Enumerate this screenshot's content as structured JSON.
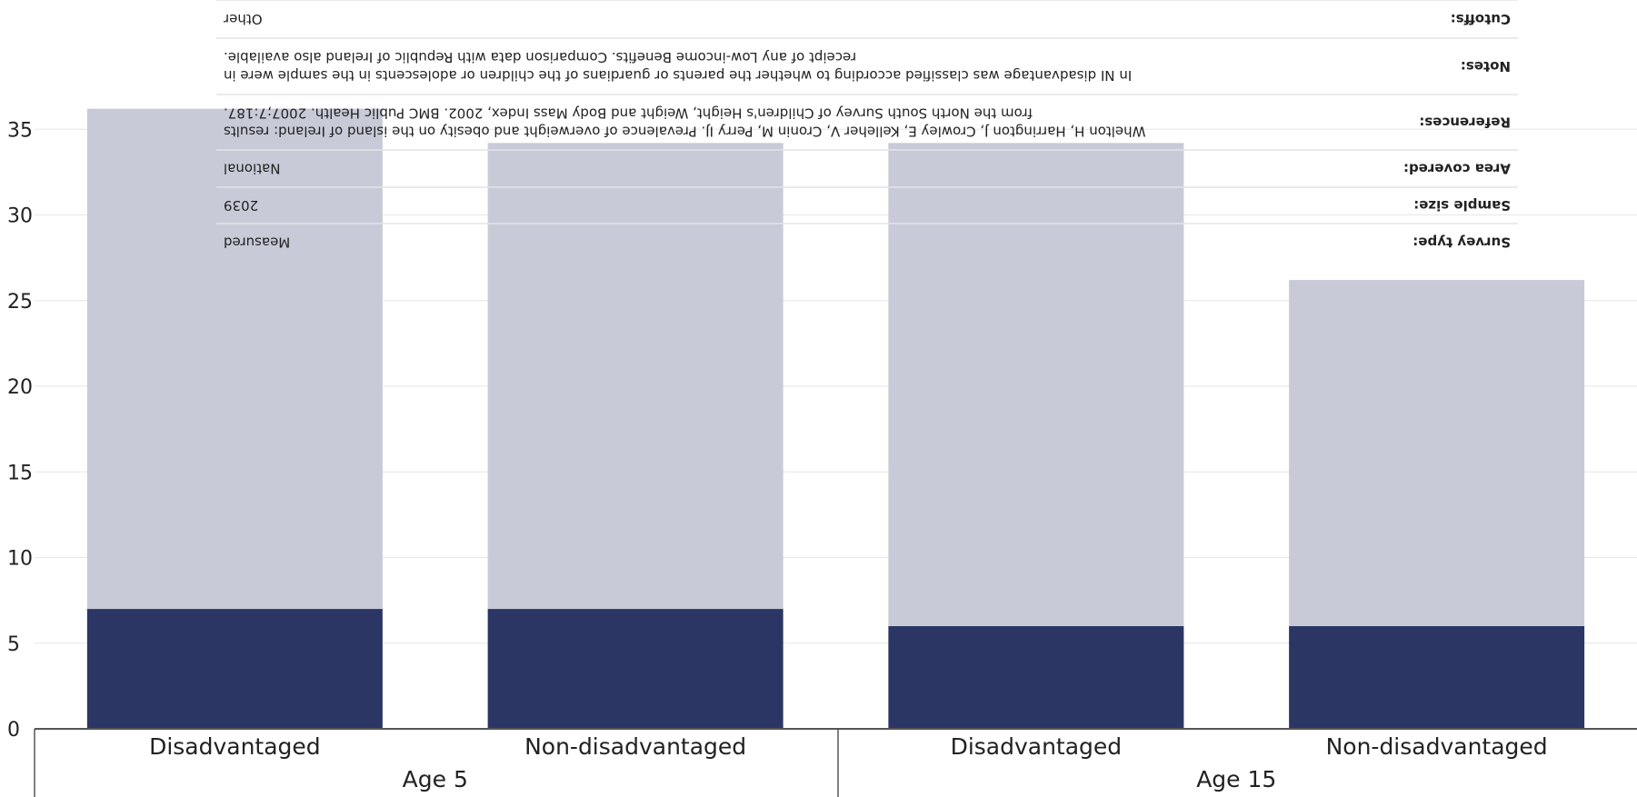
{
  "chart_data": {
    "type": "bar",
    "stacked": true,
    "y_ticks": [
      "0",
      "5",
      "10",
      "15",
      "20",
      "25",
      "30",
      "35"
    ],
    "ylim": [
      0,
      37.5
    ],
    "grid": true,
    "categories": [
      "Disadvantaged",
      "Non-disadvantaged",
      "Disadvantaged",
      "Non-disadvantaged"
    ],
    "groups": [
      {
        "label": "Age 5",
        "categories": [
          0,
          1
        ]
      },
      {
        "label": "Age 15",
        "categories": [
          2,
          3
        ]
      }
    ],
    "series": [
      {
        "values": [
          7.0,
          7.0,
          6.0,
          6.0
        ],
        "color": "#2b3664"
      },
      {
        "values": [
          29.2,
          27.2,
          28.2,
          20.2
        ],
        "color": "#c8cad7"
      }
    ],
    "info_table": {
      "rows": [
        {
          "key": "Cutoffs:",
          "lines": [
            "Other"
          ]
        },
        {
          "key": "Notes:",
          "lines": [
            "In NI disadvantage was classified according to whether the parents or guardians of the children or adolescents in the sample were in",
            "receipt of any Low-income Benefits. Comparison data with Republic of Ireland also available."
          ]
        },
        {
          "key": "References:",
          "lines": [
            "Whelton H, Harrington J, Crowley E, Kelleher V, Cronin M, Perry IJ. Prevalence of overweight and obesity on the island of Ireland: results",
            "from the North South Survey of Children's Height, Weight and Body Mass Index, 2002. BMC Public Health. 2007;7:187."
          ]
        },
        {
          "key": "Area covered:",
          "lines": [
            "National"
          ]
        },
        {
          "key": "Sample size:",
          "lines": [
            "2039"
          ]
        },
        {
          "key": "Survey type:",
          "lines": [
            "Measured"
          ]
        }
      ]
    }
  }
}
